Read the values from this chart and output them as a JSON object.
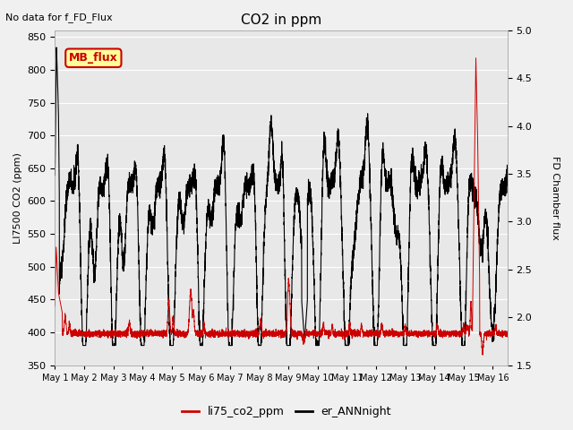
{
  "title": "CO2 in ppm",
  "top_left_text": "No data for f_FD_Flux",
  "ylabel_left": "LI7500 CO2 (ppm)",
  "ylabel_right": "FD Chamber flux",
  "ylim_left": [
    350,
    860
  ],
  "ylim_right": [
    1.5,
    5.0
  ],
  "yticks_left": [
    350,
    400,
    450,
    500,
    550,
    600,
    650,
    700,
    750,
    800,
    850
  ],
  "yticks_right": [
    1.5,
    2.0,
    2.5,
    3.0,
    3.5,
    4.0,
    4.5,
    5.0
  ],
  "legend_entries": [
    "li75_co2_ppm",
    "er_ANNnight"
  ],
  "legend_colors": [
    "#cc0000",
    "#000000"
  ],
  "mb_flux_label": "MB_flux",
  "mb_flux_color": "#cc0000",
  "mb_flux_bg": "#ffff99",
  "bg_color": "#e8e8e8",
  "grid_color": "#ffffff",
  "red_line_color": "#cc0000",
  "black_line_color": "#000000",
  "xticklabels": [
    "May 1",
    "May 2",
    "May 3",
    "May 4",
    "May 5",
    "May 6",
    "May 7",
    "May 8",
    "May 9",
    "May 10",
    "May 11",
    "May 12",
    "May 13",
    "May 14",
    "May 15",
    "May 16"
  ],
  "figsize": [
    6.4,
    4.8
  ],
  "dpi": 100
}
